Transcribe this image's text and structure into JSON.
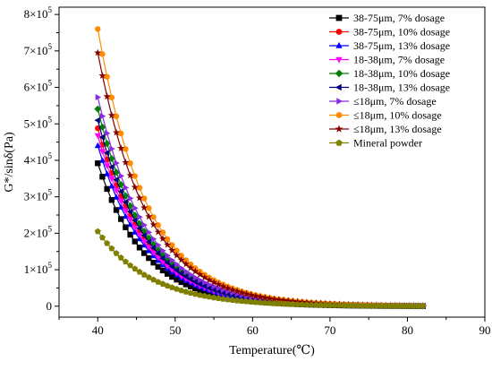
{
  "chart_data": {
    "type": "line",
    "title": "",
    "xlabel": "Temperature(℃)",
    "ylabel": "G*/sinδ(Pa)",
    "xlim": [
      35,
      90
    ],
    "ylim": [
      -30000,
      820000
    ],
    "x_ticks": [
      40,
      50,
      60,
      70,
      80,
      90
    ],
    "y_ticks": [
      {
        "value": 0,
        "label": "0"
      },
      {
        "value": 100000,
        "label": "1×10",
        "exp": "5"
      },
      {
        "value": 200000,
        "label": "2×10",
        "exp": "5"
      },
      {
        "value": 300000,
        "label": "3×10",
        "exp": "5"
      },
      {
        "value": 400000,
        "label": "4×10",
        "exp": "5"
      },
      {
        "value": 500000,
        "label": "5×10",
        "exp": "5"
      },
      {
        "value": 600000,
        "label": "6×10",
        "exp": "5"
      },
      {
        "value": 700000,
        "label": "7×10",
        "exp": "5"
      },
      {
        "value": 800000,
        "label": "8×10",
        "exp": "5"
      }
    ],
    "grid": false,
    "legend_position": "top-right",
    "x_range_data": [
      40,
      82
    ],
    "x_step": 0.6,
    "series": [
      {
        "name": "38-75μm, 7% dosage",
        "color": "#000000",
        "marker": "square",
        "start": 392000,
        "half_life": 4.2
      },
      {
        "name": "38-75μm, 10% dosage",
        "color": "#ff0000",
        "marker": "circle",
        "start": 488000,
        "half_life": 4.3
      },
      {
        "name": "38-75μm, 13% dosage",
        "color": "#0000ff",
        "marker": "triangle-up",
        "start": 440000,
        "half_life": 4.3
      },
      {
        "name": "18-38μm, 7% dosage",
        "color": "#ff00ff",
        "marker": "triangle-down",
        "start": 468000,
        "half_life": 4.3
      },
      {
        "name": "18-38μm, 10% dosage",
        "color": "#008000",
        "marker": "diamond",
        "start": 541000,
        "half_life": 4.3
      },
      {
        "name": "18-38μm, 13% dosage",
        "color": "#000080",
        "marker": "triangle-left",
        "start": 510000,
        "half_life": 4.3
      },
      {
        "name": "≤18μm, 7% dosage",
        "color": "#8a2be2",
        "marker": "triangle-right",
        "start": 573000,
        "half_life": 4.4
      },
      {
        "name": "≤18μm, 10% dosage",
        "color": "#ff8c00",
        "marker": "circle",
        "start": 760000,
        "half_life": 4.4
      },
      {
        "name": "≤18μm, 13% dosage",
        "color": "#800000",
        "marker": "star",
        "start": 695000,
        "half_life": 4.4
      },
      {
        "name": "Mineral powder",
        "color": "#808000",
        "marker": "pentagon",
        "start": 205000,
        "half_life": 4.8
      }
    ]
  }
}
